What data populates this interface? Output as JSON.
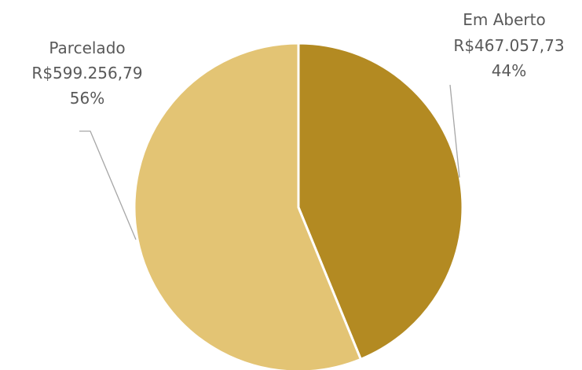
{
  "chart_data": {
    "type": "pie",
    "slices": [
      {
        "category": "Em Aberto",
        "amount_label": "R$467.057,73",
        "value": 467057.73,
        "percent_label": "44%",
        "color": "#B38A22"
      },
      {
        "category": "Parcelado",
        "amount_label": "R$599.256,79",
        "value": 599256.79,
        "percent_label": "56%",
        "color": "#E3C474"
      }
    ],
    "slice_border_color": "#FFFFFF",
    "label_color": "#595959",
    "leader_line_color": "#A6A6A6",
    "legend": false
  }
}
